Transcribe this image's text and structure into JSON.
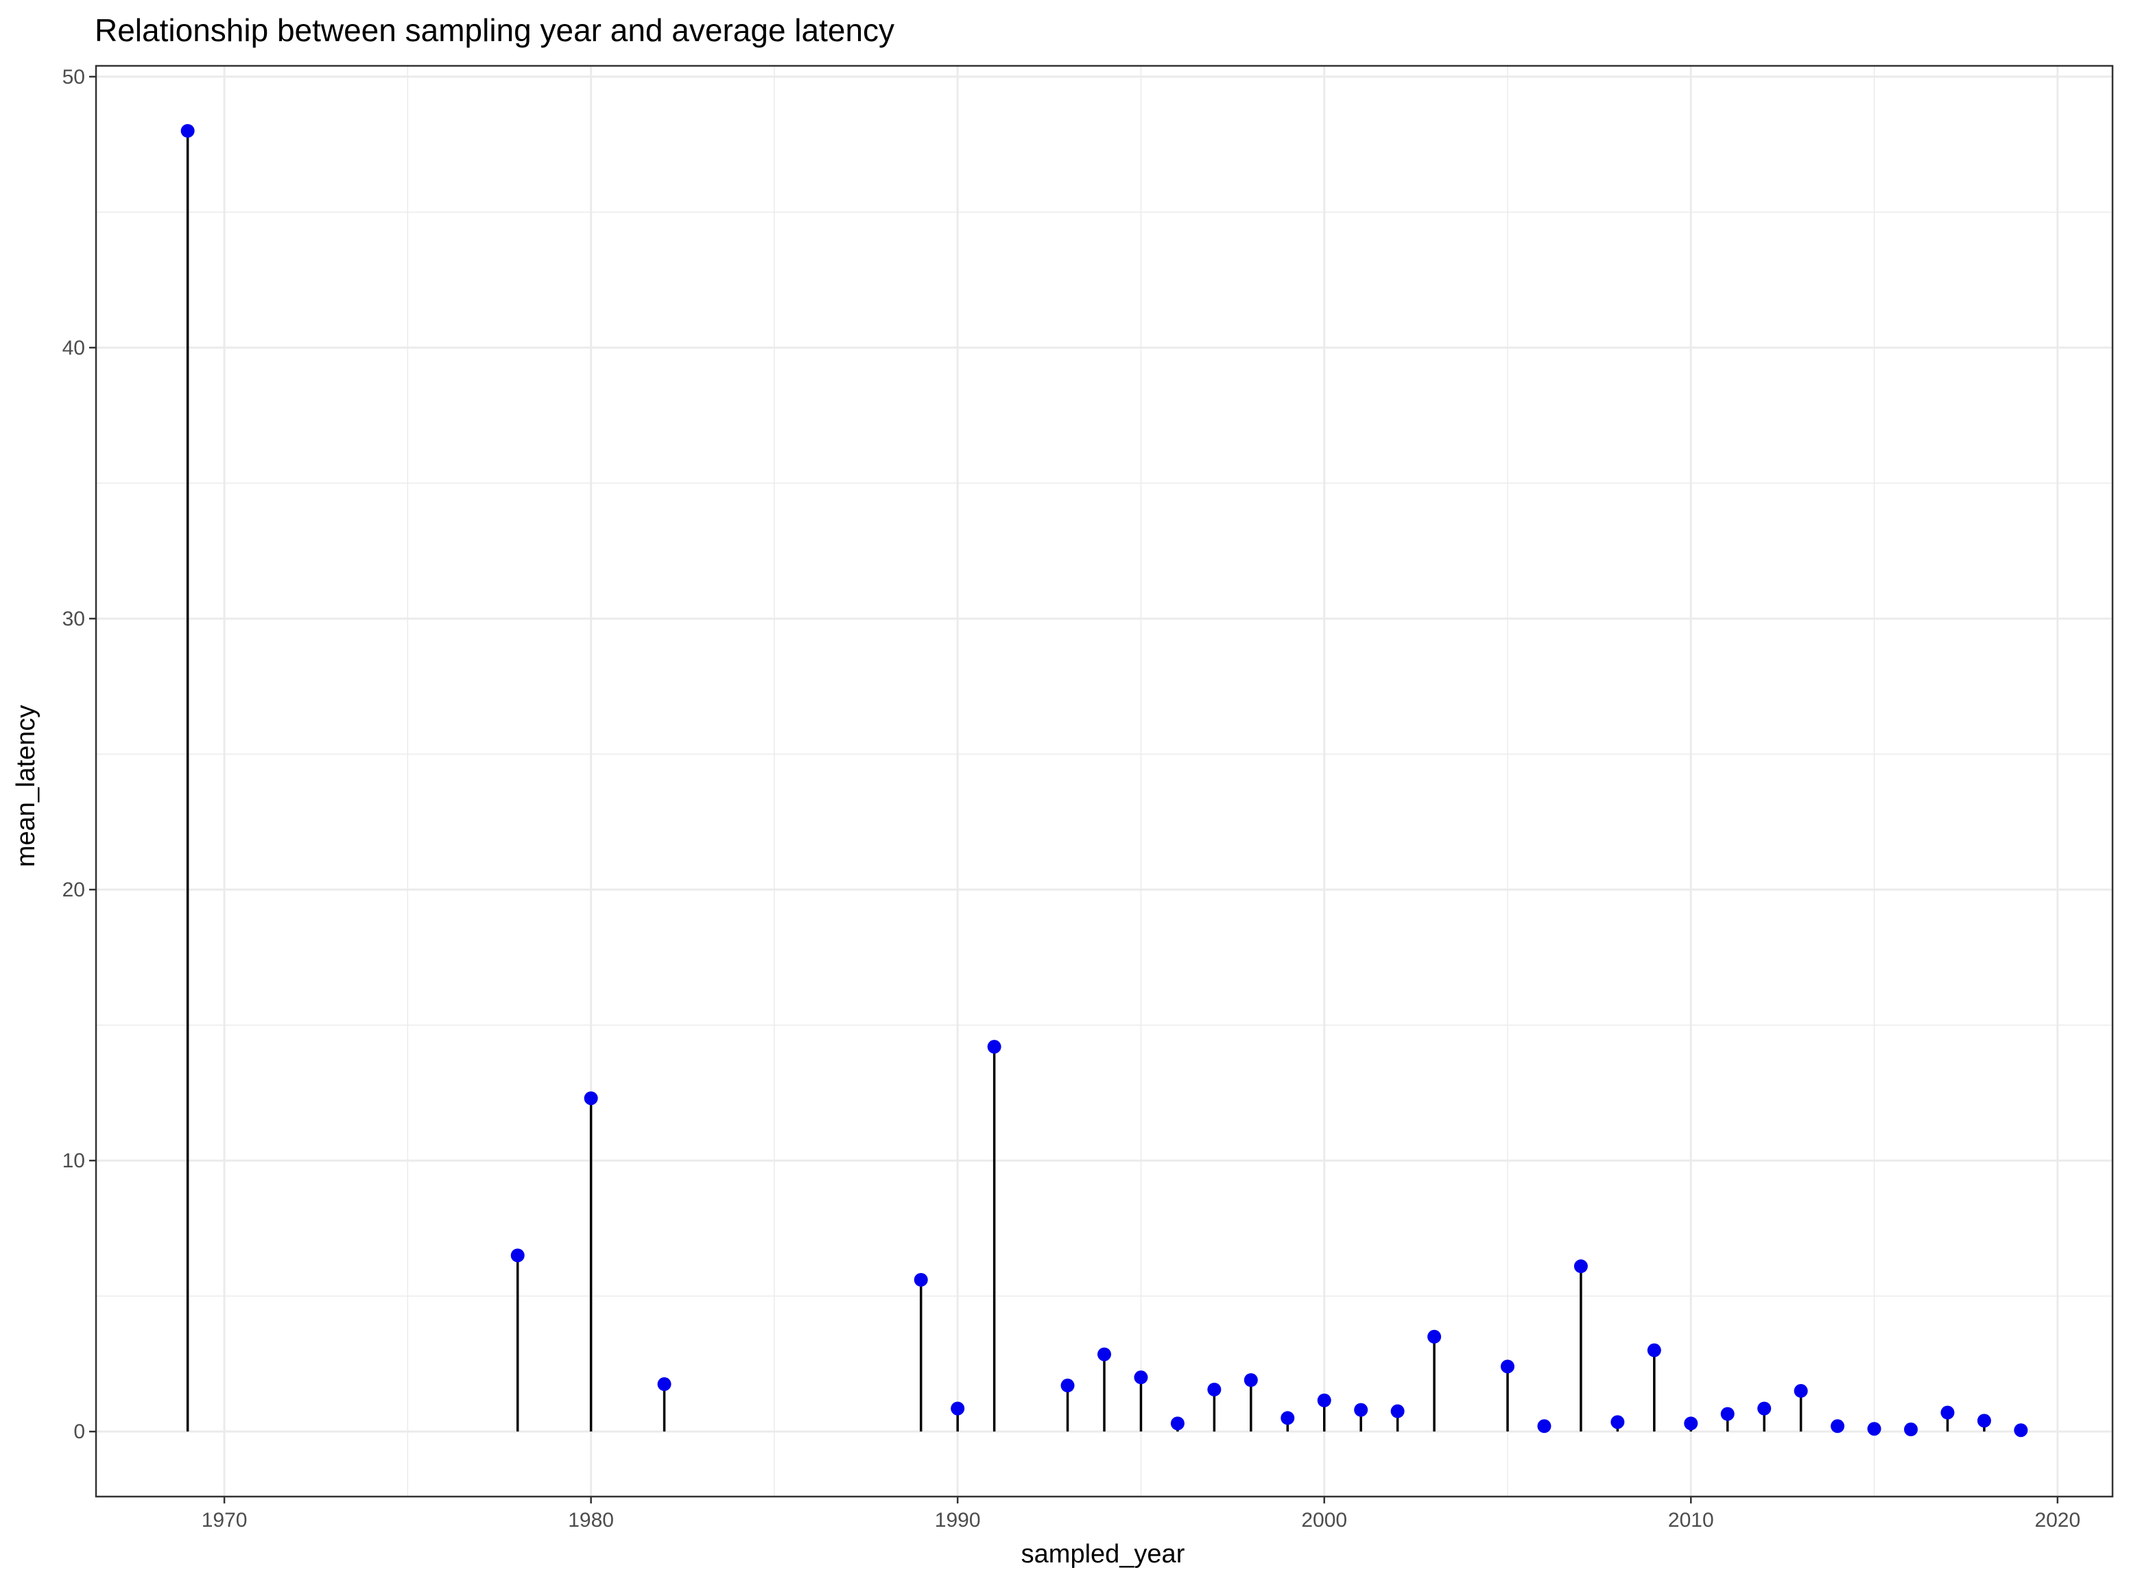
{
  "chart_data": {
    "type": "scatter",
    "mark": "lollipop",
    "title": "Relationship between sampling year and average latency",
    "xlabel": "sampled_year",
    "ylabel": "mean_latency",
    "xlim": [
      1966.5,
      2021.5
    ],
    "ylim": [
      -2.4,
      50.4
    ],
    "x_ticks": [
      1970,
      1980,
      1990,
      2000,
      2010,
      2020
    ],
    "x_minor_ticks": [
      1975,
      1985,
      1995,
      2005,
      2015
    ],
    "y_ticks": [
      0,
      10,
      20,
      30,
      40,
      50
    ],
    "y_minor_ticks": [
      5,
      15,
      25,
      35,
      45
    ],
    "x_tick_labels": [
      "1970",
      "1980",
      "1990",
      "2000",
      "2010",
      "2020"
    ],
    "y_tick_labels": [
      "0",
      "10",
      "20",
      "30",
      "40",
      "50"
    ],
    "grid": true,
    "theme": "bw",
    "point_color": "#0000ee",
    "stem_color": "#000000",
    "grid_color": "#ebebeb",
    "panel_border_color": "#333333",
    "series": [
      {
        "x": [
          1969,
          1978,
          1980,
          1982,
          1989,
          1990,
          1991,
          1993,
          1994,
          1995,
          1996,
          1997,
          1998,
          1999,
          2000,
          2001,
          2002,
          2003,
          2005,
          2006,
          2007,
          2008,
          2009,
          2010,
          2011,
          2012,
          2013,
          2014,
          2015,
          2016,
          2017,
          2018,
          2019
        ],
        "y": [
          48.0,
          6.5,
          12.3,
          1.75,
          5.6,
          0.85,
          14.2,
          1.7,
          2.85,
          2.0,
          0.3,
          1.55,
          1.9,
          0.5,
          1.15,
          0.8,
          0.75,
          3.5,
          2.4,
          0.2,
          6.1,
          0.35,
          3.0,
          0.3,
          0.65,
          0.85,
          1.5,
          0.2,
          0.1,
          0.08,
          0.7,
          0.4,
          0.05
        ]
      }
    ]
  }
}
